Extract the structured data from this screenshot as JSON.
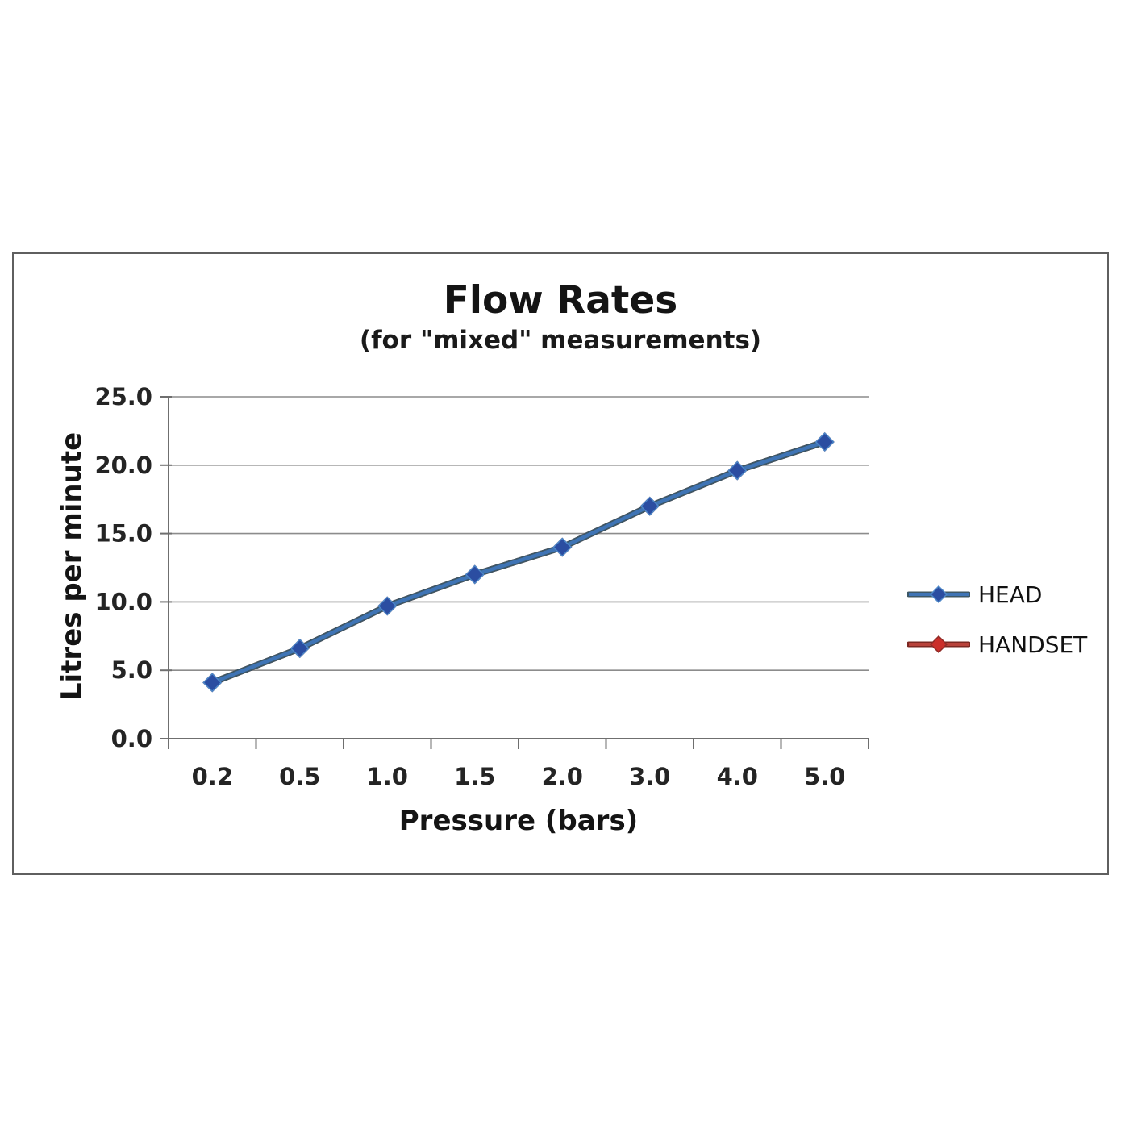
{
  "style": {
    "background": "#ffffff",
    "frame_border_color": "#5f5f5f",
    "grid_color": "#8c8c8c",
    "axis_color": "#6f6f6f",
    "text_color": "#1b1b1b"
  },
  "chart_data": {
    "type": "line",
    "title": "Flow Rates",
    "subtitle": "(for \"mixed\" measurements)",
    "xlabel": "Pressure (bars)",
    "ylabel": "Litres per minute",
    "categories": [
      "0.2",
      "0.5",
      "1.0",
      "1.5",
      "2.0",
      "3.0",
      "4.0",
      "5.0"
    ],
    "series": [
      {
        "name": "HEAD",
        "values": [
          4.1,
          6.6,
          9.7,
          12.0,
          14.0,
          17.0,
          19.6,
          21.7
        ],
        "color": "#3f74b5",
        "outline": "#3d5766",
        "marker": "#2b4da1",
        "marker_edge": "#4d87c8",
        "marker_shape": "diamond"
      },
      {
        "name": "HANDSET",
        "values": [
          4.1,
          6.6,
          9.7,
          12.0,
          14.0,
          17.0,
          19.6,
          21.7
        ],
        "color": "#b8423a",
        "outline": "#7c2822",
        "marker": "#cb2f2a",
        "marker_edge": "#8f2b26",
        "marker_shape": "diamond",
        "note": "coincides with HEAD series; completely overlapped by it in the plot"
      }
    ],
    "ylim": [
      0,
      25
    ],
    "yticks": [
      "0.0",
      "5.0",
      "10.0",
      "15.0",
      "20.0",
      "25.0"
    ],
    "ytick_values": [
      0,
      5,
      10,
      15,
      20,
      25
    ],
    "grid": "horizontal",
    "legend_position": "right"
  }
}
